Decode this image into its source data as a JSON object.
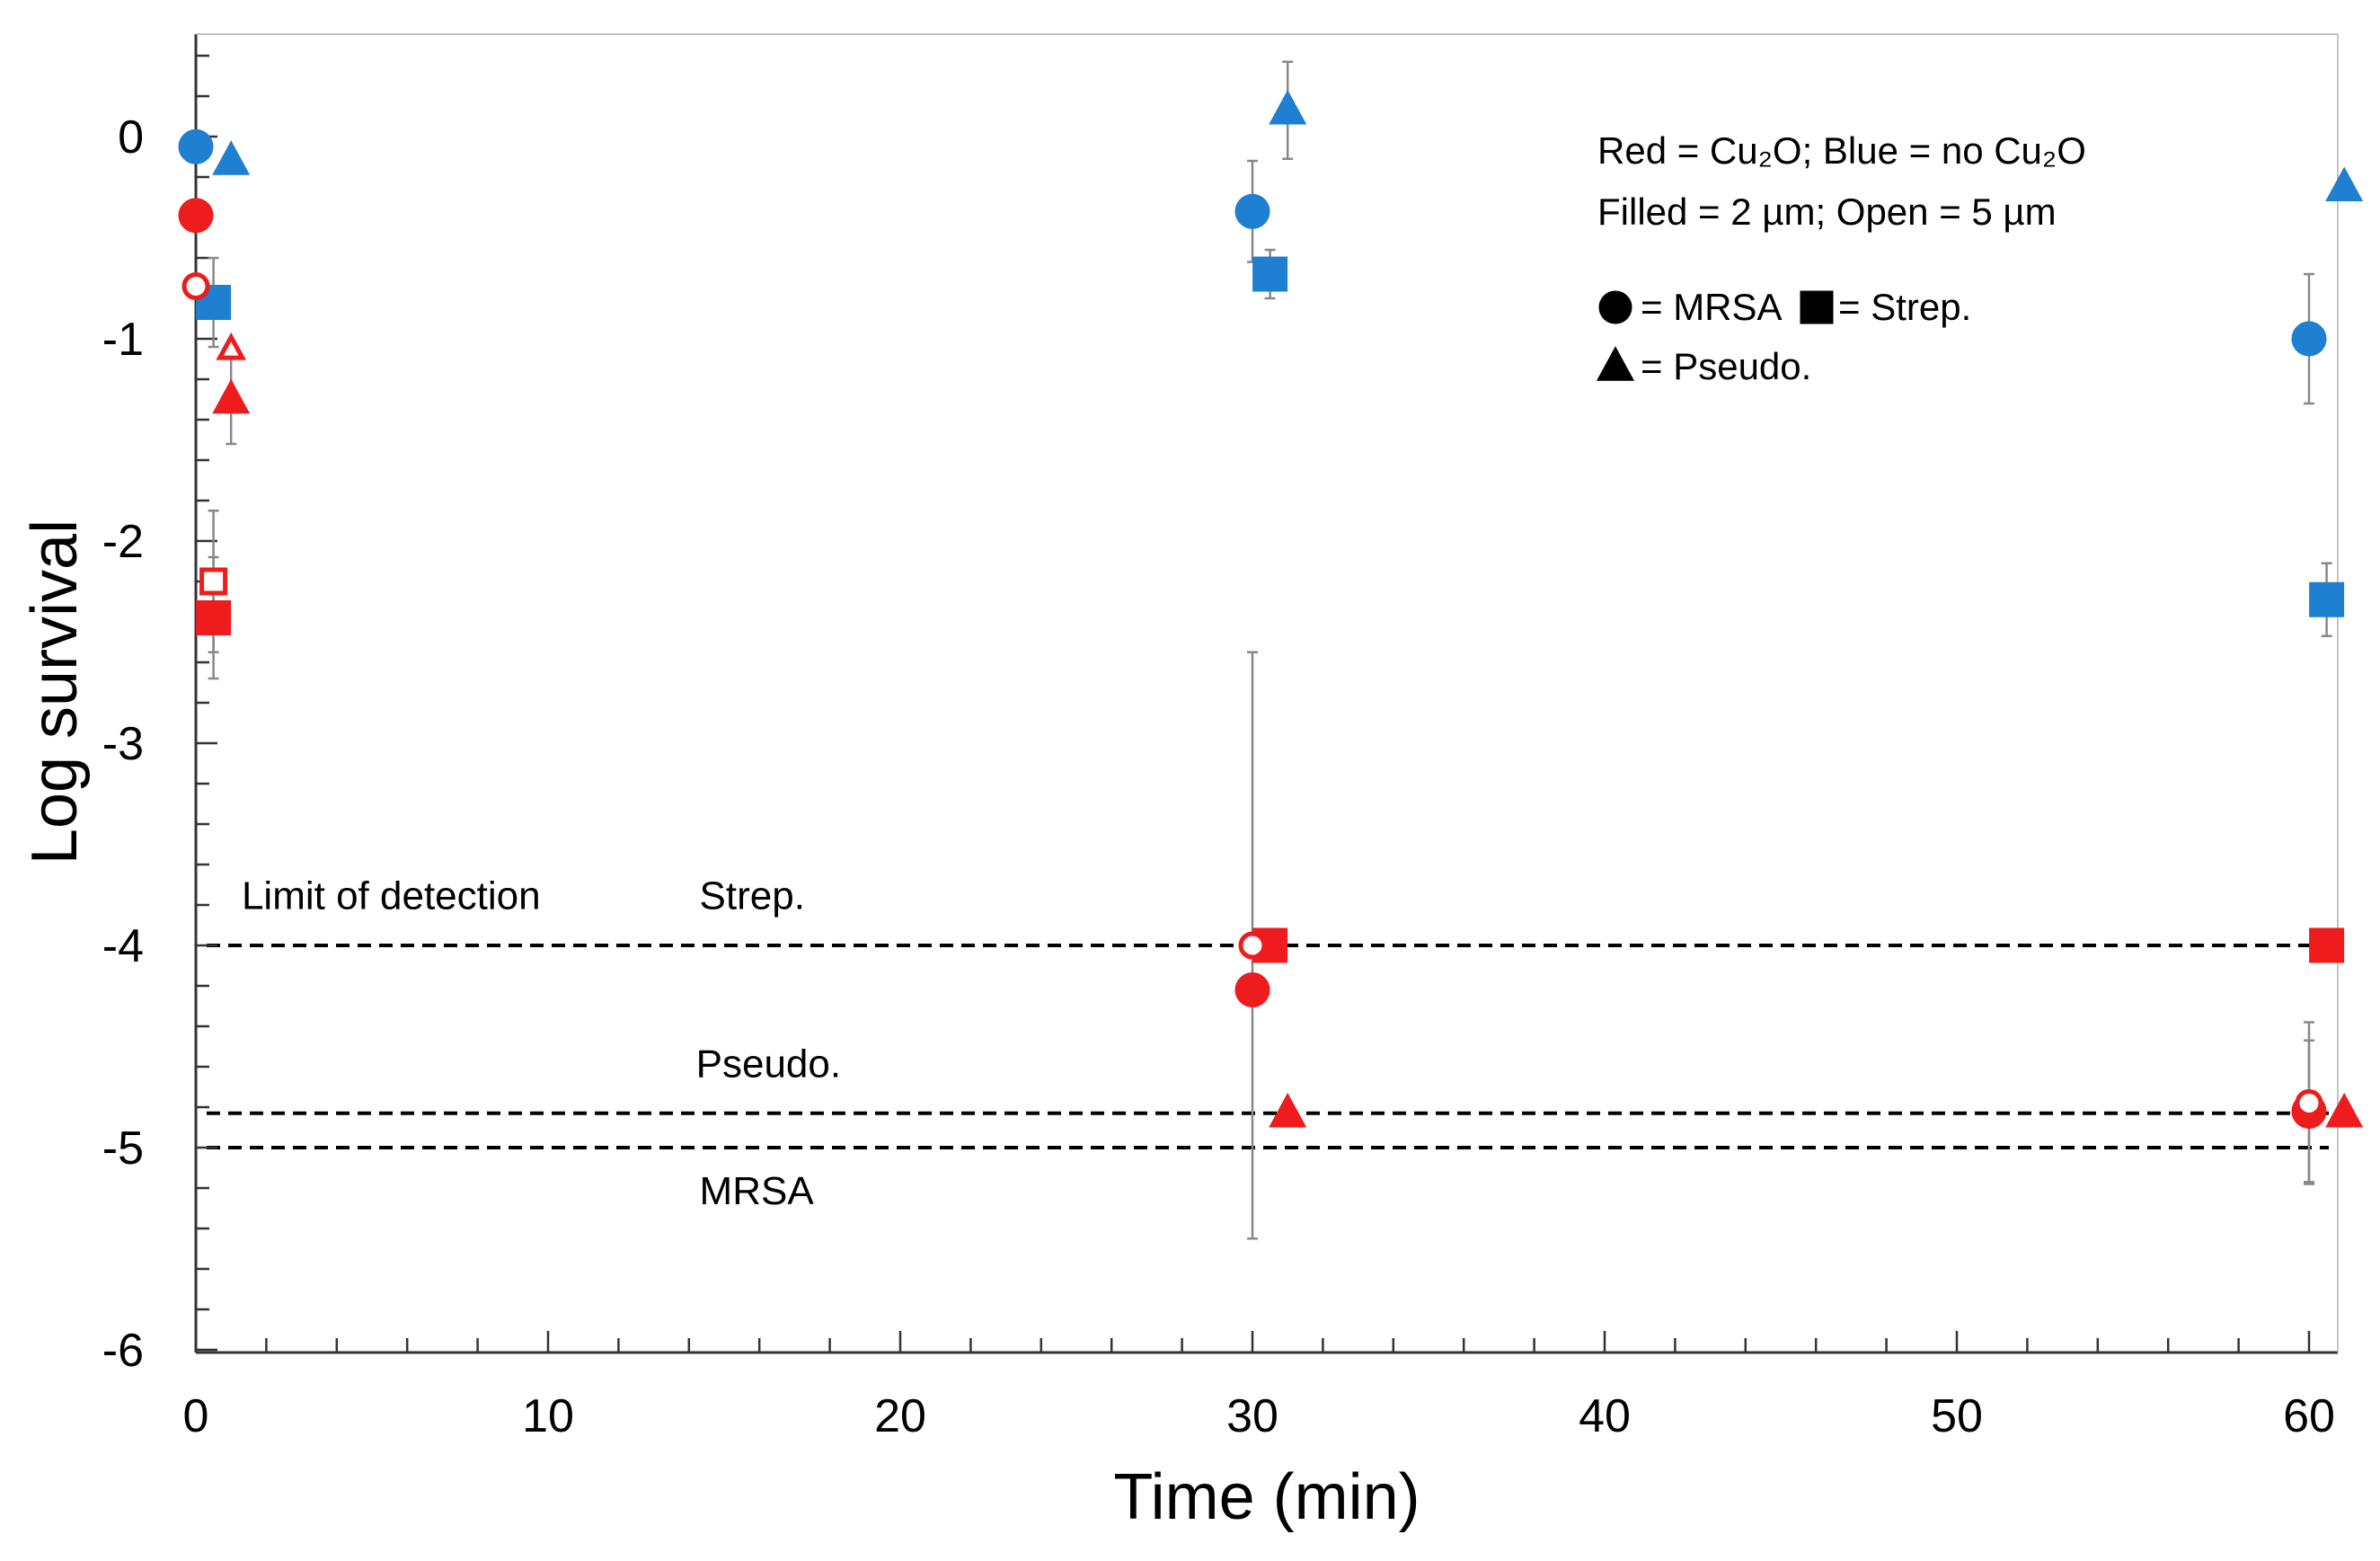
{
  "chart_data": {
    "type": "scatter",
    "title": "",
    "xlabel": "Time (min)",
    "ylabel": "Log survival",
    "xlim": [
      0,
      61
    ],
    "ylim": [
      -6,
      0.5
    ],
    "xticks": [
      0,
      10,
      20,
      30,
      40,
      50,
      60
    ],
    "yticks": [
      0,
      -1,
      -2,
      -3,
      -4,
      -5,
      -6
    ],
    "grid": false,
    "legend": {
      "placement": "top-right",
      "lines": [
        "Red = Cu₂O; Blue = no Cu₂O",
        "Filled = 2 µm; Open = 5 µm"
      ],
      "marker_entries": [
        {
          "shape": "circle",
          "label": "= MRSA"
        },
        {
          "shape": "square",
          "label": "= Strep."
        },
        {
          "shape": "triangle",
          "label": "= Pseudo."
        }
      ]
    },
    "colors": {
      "cu2o": "#ee1c1c",
      "no_cu2o": "#1f7fd0",
      "errorbar": "#888888",
      "axis": "#333333"
    },
    "reference_lines": [
      {
        "name": "Strep.",
        "y": -4.0,
        "dashed": true
      },
      {
        "name": "Pseudo.",
        "y": -4.83,
        "dashed": true
      },
      {
        "name": "MRSA",
        "y": -5.0,
        "dashed": true
      }
    ],
    "annotations": [
      {
        "text": "Limit of detection",
        "x": 1.3,
        "y": -3.82
      },
      {
        "text": "Strep.",
        "x": 14.3,
        "y": -3.82
      },
      {
        "text": "Pseudo.",
        "x": 14.2,
        "y": -4.65
      },
      {
        "text": "MRSA",
        "x": 14.3,
        "y": -5.28
      }
    ],
    "series": [
      {
        "name": "MRSA no Cu₂O 2 µm",
        "marker": "circle",
        "color": "no_cu2o",
        "filled": true,
        "points": [
          {
            "x": 0,
            "y": -0.05
          },
          {
            "x": 30,
            "y": -0.37,
            "err": 0.25
          },
          {
            "x": 60,
            "y": -1.0,
            "err": 0.32
          }
        ]
      },
      {
        "name": "Strep. no Cu₂O 2 µm",
        "marker": "square",
        "color": "no_cu2o",
        "filled": true,
        "points": [
          {
            "x": 0.5,
            "y": -0.82,
            "err": 0.22
          },
          {
            "x": 30.5,
            "y": -0.68,
            "err": 0.12
          },
          {
            "x": 60.5,
            "y": -2.29,
            "err": 0.18
          }
        ]
      },
      {
        "name": "Pseudo. no Cu₂O 2 µm",
        "marker": "triangle",
        "color": "no_cu2o",
        "filled": true,
        "points": [
          {
            "x": 1,
            "y": -0.12
          },
          {
            "x": 31,
            "y": 0.13,
            "err": 0.24
          },
          {
            "x": 61,
            "y": -0.25
          }
        ]
      },
      {
        "name": "MRSA Cu₂O 2 µm",
        "marker": "circle",
        "color": "cu2o",
        "filled": true,
        "points": [
          {
            "x": 0,
            "y": -0.39
          },
          {
            "x": 30,
            "y": -4.22
          },
          {
            "x": 60,
            "y": -4.82,
            "err": 0.35
          }
        ]
      },
      {
        "name": "MRSA Cu₂O 5 µm",
        "marker": "circle",
        "color": "cu2o",
        "filled": false,
        "points": [
          {
            "x": 0,
            "y": -0.74
          },
          {
            "x": 30,
            "y": -4.0,
            "err": 1.45
          },
          {
            "x": 60,
            "y": -4.78,
            "err": 0.4
          }
        ]
      },
      {
        "name": "Strep. Cu₂O 2 µm",
        "marker": "square",
        "color": "cu2o",
        "filled": true,
        "points": [
          {
            "x": 0.5,
            "y": -2.38,
            "err": 0.3
          },
          {
            "x": 30.5,
            "y": -4.0
          },
          {
            "x": 60.5,
            "y": -4.0
          }
        ]
      },
      {
        "name": "Strep. Cu₂O 5 µm",
        "marker": "square",
        "color": "cu2o",
        "filled": false,
        "points": [
          {
            "x": 0.5,
            "y": -2.2,
            "err": 0.35
          }
        ]
      },
      {
        "name": "Pseudo. Cu₂O 2 µm",
        "marker": "triangle",
        "color": "cu2o",
        "filled": true,
        "points": [
          {
            "x": 1,
            "y": -1.3,
            "err": 0.22
          },
          {
            "x": 31,
            "y": -4.83
          },
          {
            "x": 61,
            "y": -4.83
          }
        ]
      },
      {
        "name": "Pseudo. Cu₂O 5 µm",
        "marker": "triangle",
        "color": "cu2o",
        "filled": false,
        "points": [
          {
            "x": 1,
            "y": -1.05
          }
        ]
      }
    ]
  }
}
